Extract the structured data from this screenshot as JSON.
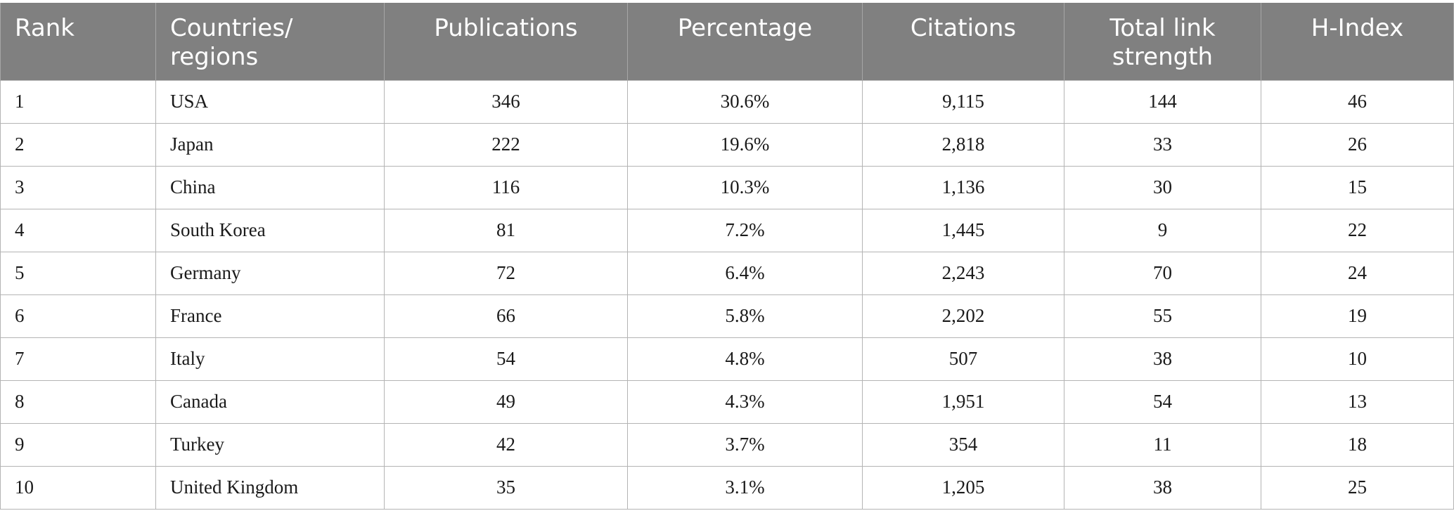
{
  "table": {
    "headers": [
      "Rank",
      "Countries/\nregions",
      "Publications",
      "Percentage",
      "Citations",
      "Total link\nstrength",
      "H-Index"
    ],
    "rows": [
      [
        "1",
        "USA",
        "346",
        "30.6%",
        "9,115",
        "144",
        "46"
      ],
      [
        "2",
        "Japan",
        "222",
        "19.6%",
        "2,818",
        "33",
        "26"
      ],
      [
        "3",
        "China",
        "116",
        "10.3%",
        "1,136",
        "30",
        "15"
      ],
      [
        "4",
        "South Korea",
        "81",
        "7.2%",
        "1,445",
        "9",
        "22"
      ],
      [
        "5",
        "Germany",
        "72",
        "6.4%",
        "2,243",
        "70",
        "24"
      ],
      [
        "6",
        "France",
        "66",
        "5.8%",
        "2,202",
        "55",
        "19"
      ],
      [
        "7",
        "Italy",
        "54",
        "4.8%",
        "507",
        "38",
        "10"
      ],
      [
        "8",
        "Canada",
        "49",
        "4.3%",
        "1,951",
        "54",
        "13"
      ],
      [
        "9",
        "Turkey",
        "42",
        "3.7%",
        "354",
        "11",
        "18"
      ],
      [
        "10",
        "United Kingdom",
        "35",
        "3.1%",
        "1,205",
        "38",
        "25"
      ]
    ]
  }
}
